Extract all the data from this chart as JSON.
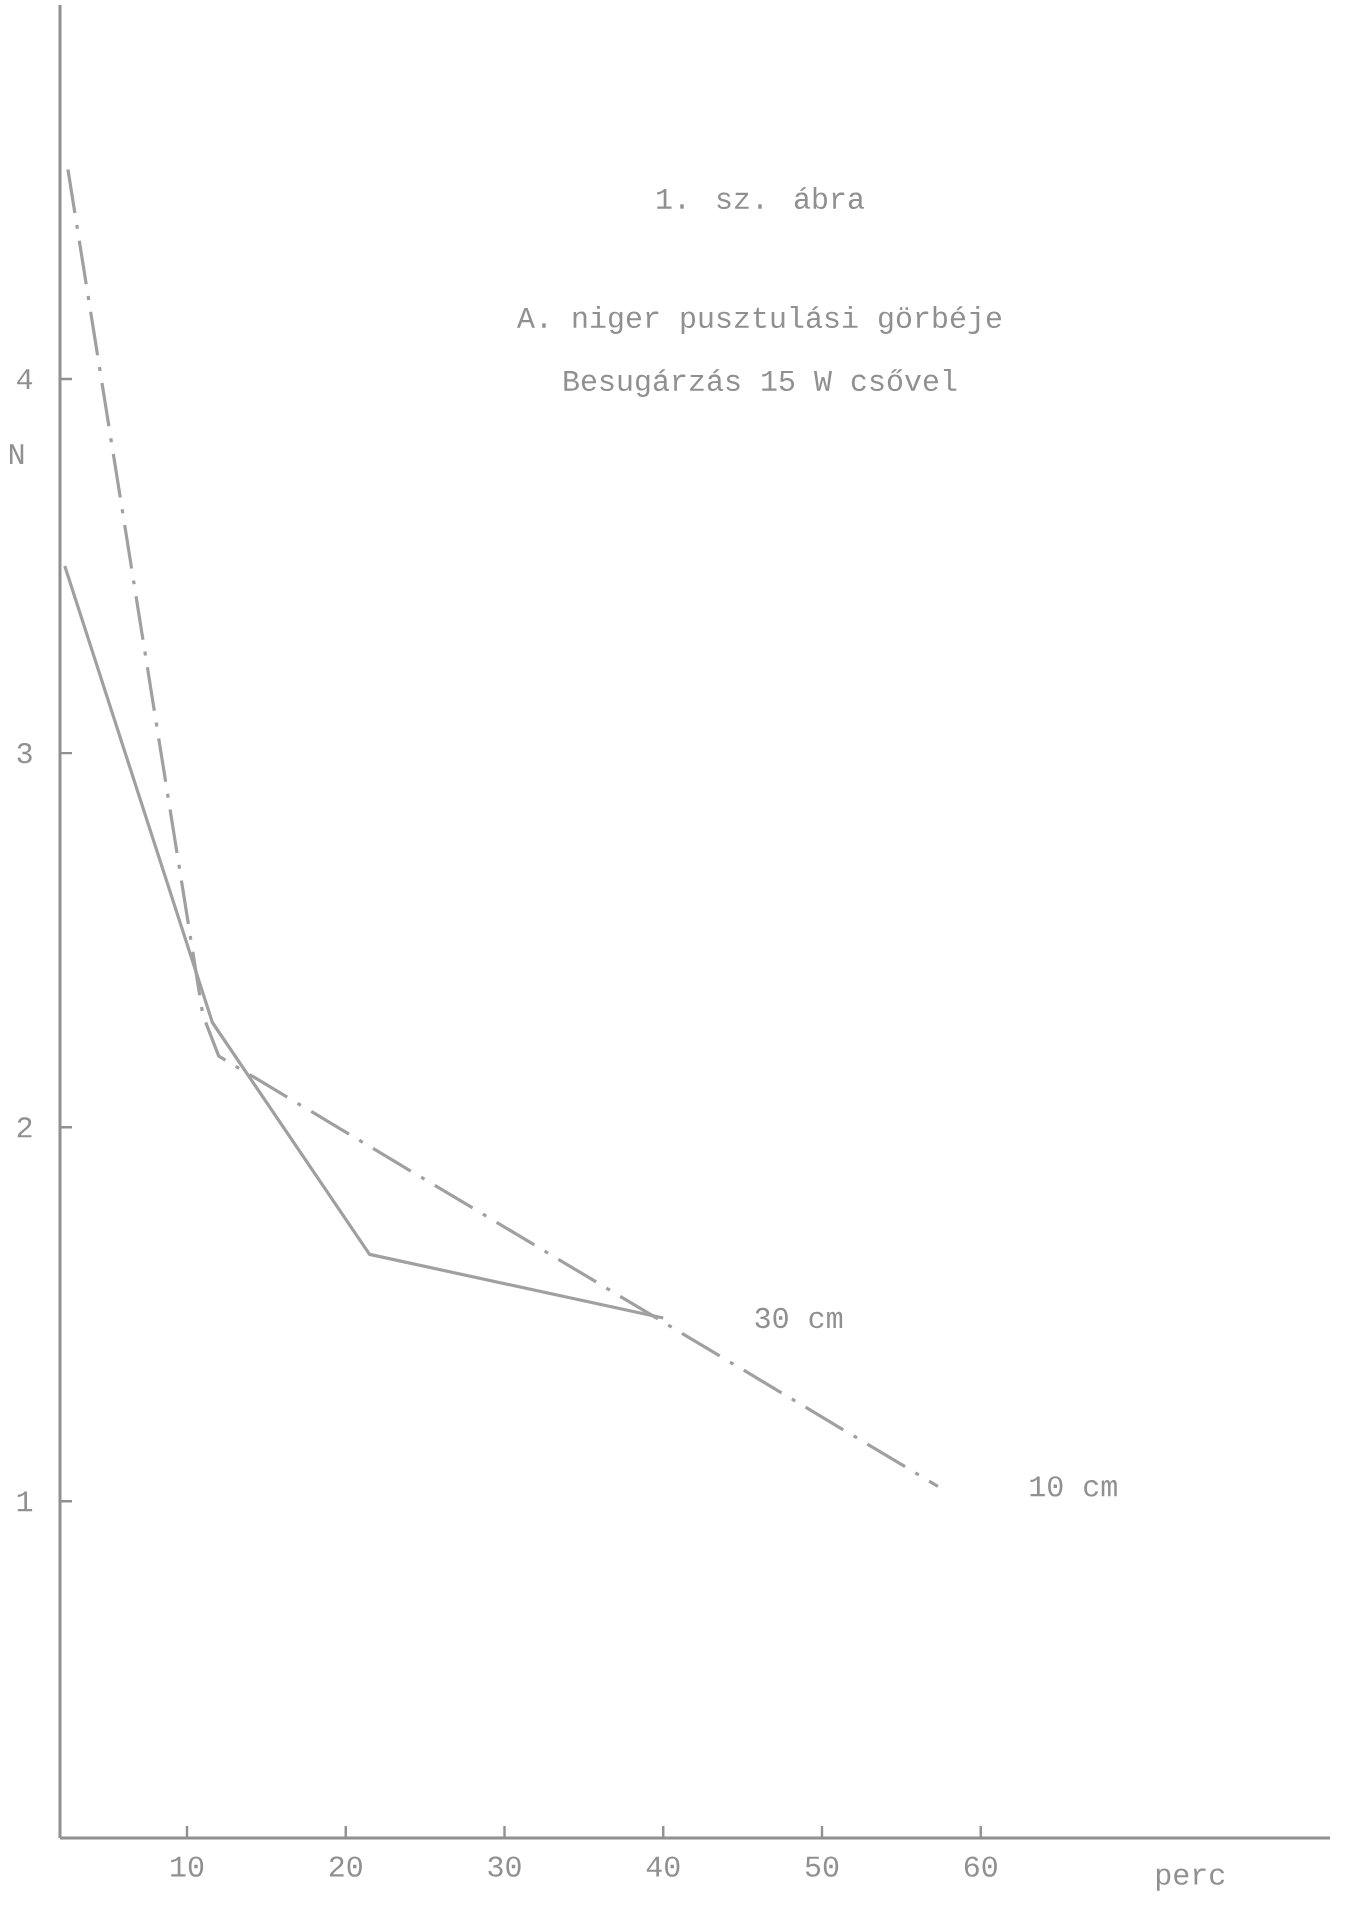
{
  "chart_data": {
    "type": "line",
    "title": "1. sz. ábra",
    "subtitle": "A. niger pusztulási görbéje",
    "annotations": [
      "Besugárzás 15 W csővel"
    ],
    "xlabel": "perc",
    "ylabel": "N",
    "xlim": [
      2,
      82
    ],
    "ylim": [
      0.1,
      5
    ],
    "xticks": [
      10,
      20,
      30,
      40,
      50,
      60
    ],
    "yticks": [
      1,
      2,
      3,
      4
    ],
    "grid": false,
    "legend": false,
    "marker": "none",
    "series": [
      {
        "name": "30 cm",
        "color": "#a0a0a0",
        "line_style": "solid",
        "x": [
          2.3,
          11.6,
          21.5,
          40
        ],
        "values": [
          3.5,
          2.28,
          1.66,
          1.49
        ]
      },
      {
        "name": "10 cm",
        "color": "#a0a0a0",
        "line_style": "dashdot",
        "x": [
          2.5,
          11,
          12,
          57.3
        ],
        "values": [
          4.56,
          2.3,
          2.19,
          1.04
        ]
      }
    ]
  }
}
